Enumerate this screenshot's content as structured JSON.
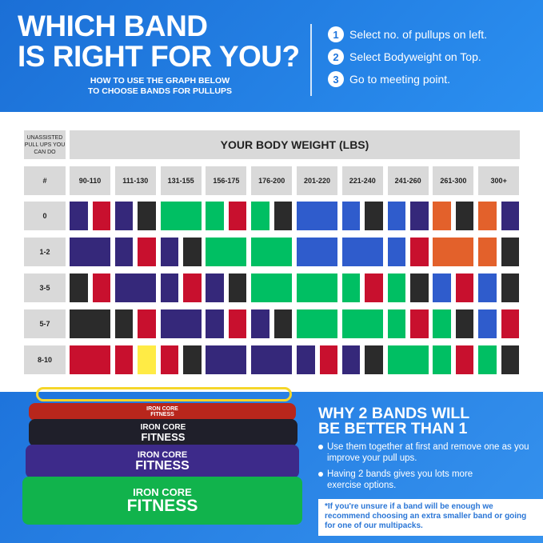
{
  "header": {
    "title_line1": "WHICH BAND",
    "title_line2": "IS RIGHT FOR YOU?",
    "subtitle_line1": "HOW TO USE THE GRAPH BELOW",
    "subtitle_line2": "TO CHOOSE BANDS FOR PULLUPS",
    "steps": [
      {
        "num": "1",
        "text": "Select no. of pullups on left."
      },
      {
        "num": "2",
        "text": "Select Bodyweight on Top."
      },
      {
        "num": "3",
        "text": "Go to meeting point."
      }
    ]
  },
  "table": {
    "corner_label": "UNASSISTED PULL UPS YOU CAN DO",
    "weight_title": "YOUR BODY WEIGHT (LBS)",
    "hash": "#",
    "columns": [
      "90-110",
      "111-130",
      "131-155",
      "156-175",
      "176-200",
      "201-220",
      "221-240",
      "241-260",
      "261-300",
      "300+"
    ],
    "colors": {
      "purple": "#35287a",
      "red": "#c8102e",
      "black": "#2b2b2b",
      "green": "#00bf63",
      "blue": "#2f5ccc",
      "orange": "#e3612b",
      "yellow": "#ffeb45"
    },
    "rows": [
      {
        "label": "0",
        "cells": [
          [
            "purple",
            "red"
          ],
          [
            "purple",
            "black"
          ],
          [
            "green"
          ],
          [
            "green",
            "red"
          ],
          [
            "green",
            "black"
          ],
          [
            "blue"
          ],
          [
            "blue",
            "black"
          ],
          [
            "blue",
            "purple"
          ],
          [
            "orange",
            "black"
          ],
          [
            "orange",
            "purple"
          ]
        ]
      },
      {
        "label": "1-2",
        "cells": [
          [
            "purple"
          ],
          [
            "purple",
            "red"
          ],
          [
            "purple",
            "black"
          ],
          [
            "green"
          ],
          [
            "green"
          ],
          [
            "blue"
          ],
          [
            "blue"
          ],
          [
            "blue",
            "red"
          ],
          [
            "orange"
          ],
          [
            "orange",
            "black"
          ]
        ]
      },
      {
        "label": "3-5",
        "cells": [
          [
            "black",
            "red"
          ],
          [
            "purple"
          ],
          [
            "purple",
            "red"
          ],
          [
            "purple",
            "black"
          ],
          [
            "green"
          ],
          [
            "green"
          ],
          [
            "green",
            "red"
          ],
          [
            "green",
            "black"
          ],
          [
            "blue",
            "red"
          ],
          [
            "blue",
            "black"
          ]
        ]
      },
      {
        "label": "5-7",
        "cells": [
          [
            "black"
          ],
          [
            "black",
            "red"
          ],
          [
            "purple"
          ],
          [
            "purple",
            "red"
          ],
          [
            "purple",
            "black"
          ],
          [
            "green"
          ],
          [
            "green"
          ],
          [
            "green",
            "red"
          ],
          [
            "green",
            "black"
          ],
          [
            "blue",
            "red"
          ]
        ]
      },
      {
        "label": "8-10",
        "cells": [
          [
            "red"
          ],
          [
            "red",
            "yellow"
          ],
          [
            "red",
            "black"
          ],
          [
            "purple"
          ],
          [
            "purple"
          ],
          [
            "purple",
            "red"
          ],
          [
            "purple",
            "black"
          ],
          [
            "green"
          ],
          [
            "green",
            "red"
          ],
          [
            "green",
            "black"
          ]
        ]
      }
    ]
  },
  "bottom": {
    "why_line1": "WHY 2 BANDS WILL",
    "why_line2": "BE BETTER THAN 1",
    "bullets": [
      "Use them together at first and remove one as you improve your pull ups.",
      "Having 2 bands gives you lots more exercise options."
    ],
    "note": "*If you're unsure if a band will be enough we recommend choosing an extra smaller band or going for one of our multipacks.",
    "logo_top": "IRON CORE",
    "logo_bottom": "FITNESS"
  }
}
